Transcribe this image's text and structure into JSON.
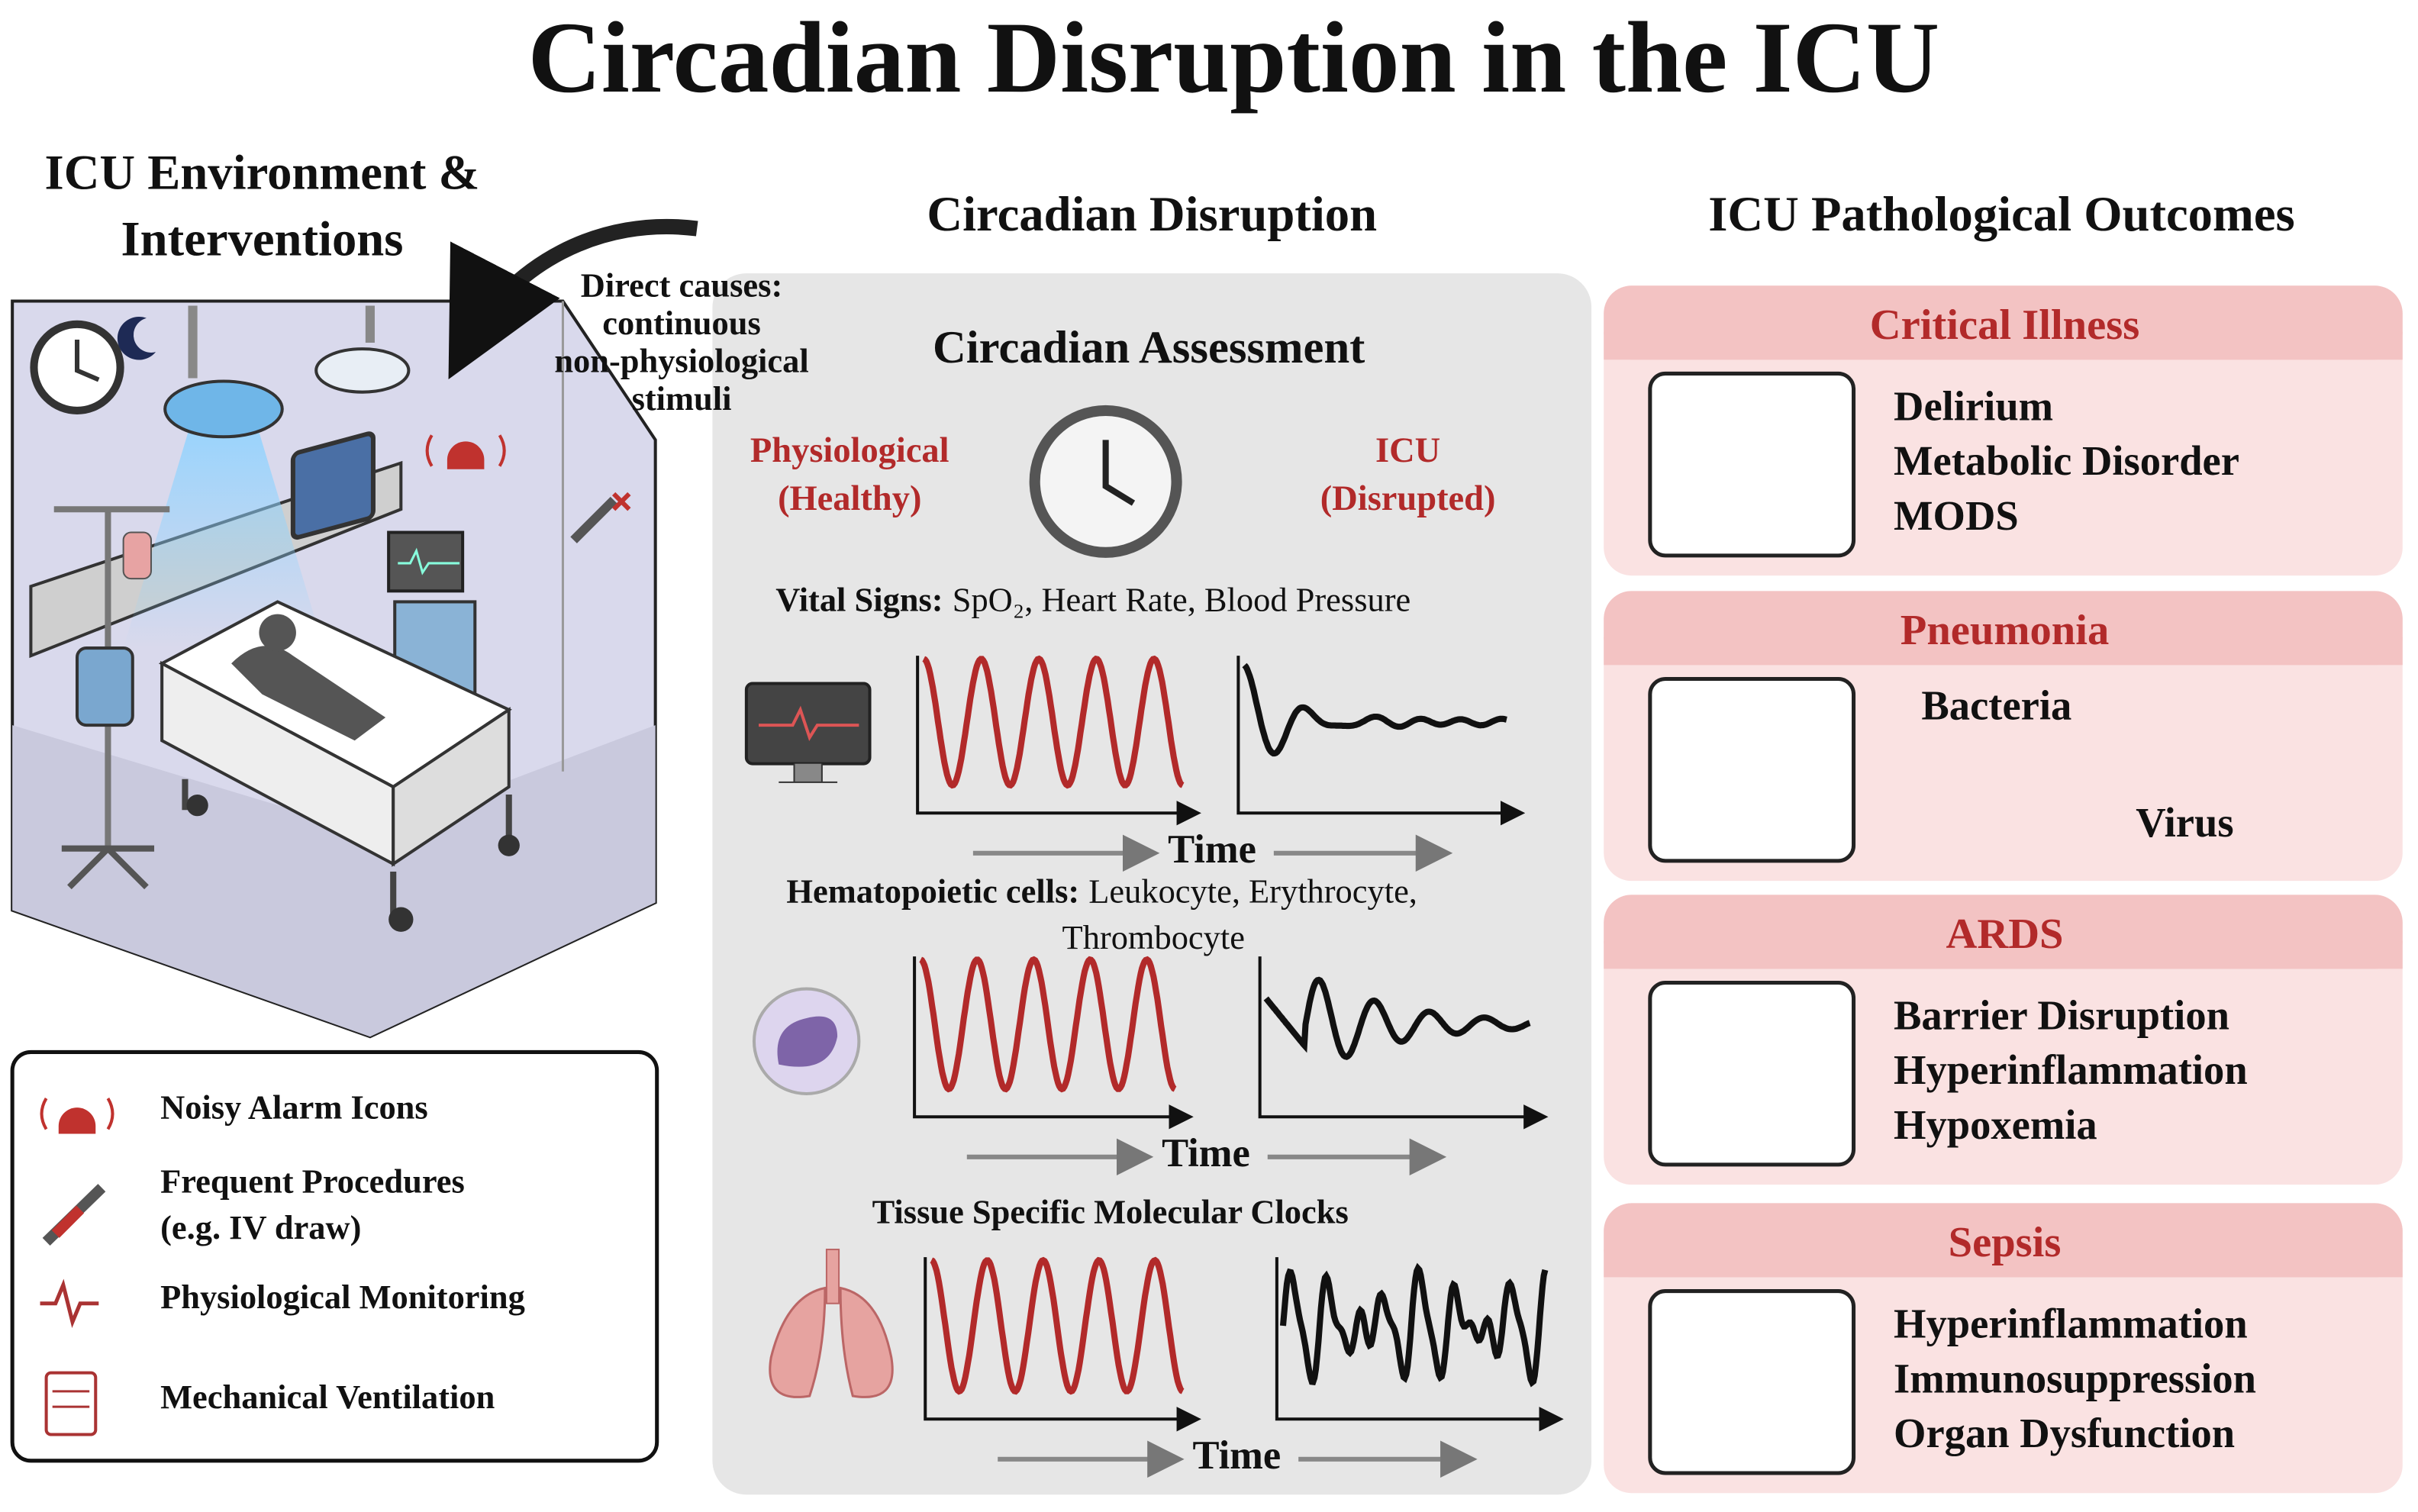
{
  "title": "Circadian Disruption in the ICU",
  "environment": {
    "heading": [
      "ICU Environment &",
      "Interventions"
    ],
    "callout": [
      "Direct causes:",
      "continuous",
      "non-physiological",
      "stimuli"
    ],
    "legend": [
      {
        "label": [
          "Noisy Alarm Icons"
        ]
      },
      {
        "label": [
          "Frequent Procedures",
          "(e.g. IV draw)"
        ]
      },
      {
        "label": [
          "Physiological Monitoring"
        ]
      },
      {
        "label": [
          "Mechanical Ventilation"
        ]
      }
    ]
  },
  "disruption": {
    "heading": "Circadian Disruption",
    "assessment": "Circadian Assessment",
    "healthy": [
      "Physiological",
      "(Healthy)"
    ],
    "disrupted": [
      "ICU",
      "(Disrupted)"
    ],
    "sections": [
      {
        "label_bold": "Vital Signs:",
        "label_rest": [
          "SpO₂, Heart Rate, Blood Pressure"
        ],
        "axis": "Time"
      },
      {
        "label_bold": "Hematopoietic cells:",
        "label_rest": [
          "Leukocyte, Erythrocyte,",
          "Thrombocyte"
        ],
        "axis": "Time"
      },
      {
        "label_bold": "Tissue Specific Molecular Clocks",
        "label_rest": [],
        "axis": "Time"
      }
    ]
  },
  "outcomes": {
    "heading": "ICU Pathological Outcomes",
    "items": [
      {
        "title": "Critical Illness",
        "lines": [
          "Delirium",
          "Metabolic Disorder",
          "MODS"
        ]
      },
      {
        "title": "Pneumonia",
        "lines": [
          "Bacteria",
          "Virus"
        ]
      },
      {
        "title": "ARDS",
        "lines": [
          "Barrier Disruption",
          "Hyperinflammation",
          "Hypoxemia"
        ]
      },
      {
        "title": "Sepsis",
        "lines": [
          "Hyperinflammation",
          "Immunosuppression",
          "Organ Dysfunction"
        ]
      }
    ]
  }
}
